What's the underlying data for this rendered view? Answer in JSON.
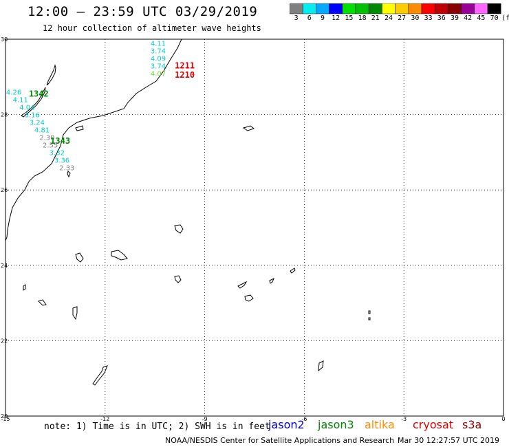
{
  "header": {
    "title": "12:00 — 23:59 UTC 03/29/2019",
    "subtitle": "12 hour collection of altimeter wave heights"
  },
  "legend": {
    "unit": "(ft)",
    "bins": [
      {
        "label": "3",
        "color": "#808080"
      },
      {
        "label": "6",
        "color": "#00f0f0"
      },
      {
        "label": "9",
        "color": "#00a8ff"
      },
      {
        "label": "12",
        "color": "#0000ff"
      },
      {
        "label": "15",
        "color": "#00e000"
      },
      {
        "label": "18",
        "color": "#00c000"
      },
      {
        "label": "21",
        "color": "#008800"
      },
      {
        "label": "24",
        "color": "#ffff00"
      },
      {
        "label": "27",
        "color": "#ffcc00"
      },
      {
        "label": "30",
        "color": "#ff8c00"
      },
      {
        "label": "33",
        "color": "#ff0000"
      },
      {
        "label": "36",
        "color": "#c00000"
      },
      {
        "label": "39",
        "color": "#880000"
      },
      {
        "label": "42",
        "color": "#990099"
      },
      {
        "label": "45",
        "color": "#ff66ff"
      },
      {
        "label": "70",
        "color": "#000000"
      }
    ]
  },
  "map": {
    "lon_range": [
      -15,
      0
    ],
    "lat_range": [
      20,
      30
    ],
    "lon_ticks": [
      {
        "value": -15,
        "label": "-15"
      },
      {
        "value": -12,
        "label": "-12"
      },
      {
        "value": -9,
        "label": "-9"
      },
      {
        "value": -6,
        "label": "-6"
      },
      {
        "value": -3,
        "label": "-3"
      },
      {
        "value": 0,
        "label": "0"
      }
    ],
    "lat_ticks": [
      {
        "value": 30,
        "label": "30"
      },
      {
        "value": 28,
        "label": "28"
      },
      {
        "value": 26,
        "label": "26"
      },
      {
        "value": 24,
        "label": "24"
      },
      {
        "value": 22,
        "label": "22"
      },
      {
        "value": 20,
        "label": "20"
      }
    ],
    "grid": "dotted"
  },
  "observations": [
    {
      "lon": -10.4,
      "lat": 29.9,
      "value": "4.11",
      "color": "#00cccc"
    },
    {
      "lon": -10.4,
      "lat": 29.7,
      "value": "3.74",
      "color": "#00cccc"
    },
    {
      "lon": -10.4,
      "lat": 29.5,
      "value": "4.09",
      "color": "#00cccc"
    },
    {
      "lon": -10.4,
      "lat": 29.3,
      "value": "3.74",
      "color": "#00cccc"
    },
    {
      "lon": -10.4,
      "lat": 29.1,
      "value": "4.07",
      "color": "#66dd33"
    },
    {
      "lon": -14.75,
      "lat": 28.6,
      "value": "4.26",
      "color": "#00cccc"
    },
    {
      "lon": -14.55,
      "lat": 28.4,
      "value": "4.11",
      "color": "#00cccc"
    },
    {
      "lon": -14.35,
      "lat": 28.2,
      "value": "4.04",
      "color": "#00cccc"
    },
    {
      "lon": -14.2,
      "lat": 28.0,
      "value": "3.16",
      "color": "#00cccc"
    },
    {
      "lon": -14.05,
      "lat": 27.8,
      "value": "3.24",
      "color": "#00cccc"
    },
    {
      "lon": -13.9,
      "lat": 27.6,
      "value": "4.81",
      "color": "#00cccc"
    },
    {
      "lon": -13.75,
      "lat": 27.4,
      "value": "2.30",
      "color": "#808080"
    },
    {
      "lon": -13.65,
      "lat": 27.2,
      "value": "2.55",
      "color": "#808080"
    },
    {
      "lon": -13.45,
      "lat": 27.0,
      "value": "3.32",
      "color": "#00cccc"
    },
    {
      "lon": -13.3,
      "lat": 26.8,
      "value": "3.36",
      "color": "#00cccc"
    },
    {
      "lon": -13.15,
      "lat": 26.6,
      "value": "2.33",
      "color": "#808080"
    }
  ],
  "pass_labels": [
    {
      "lon": -9.6,
      "lat": 29.3,
      "text": "1211",
      "color": "#dd0000"
    },
    {
      "lon": -9.6,
      "lat": 29.05,
      "text": "1210",
      "color": "#dd0000"
    },
    {
      "lon": -14.0,
      "lat": 28.55,
      "text": "1342",
      "color": "#008800"
    },
    {
      "lon": -13.35,
      "lat": 27.3,
      "text": "1343",
      "color": "#008800"
    }
  ],
  "footer": {
    "note": "note: 1) Time is in UTC; 2) SWH is in feet",
    "satellites": [
      {
        "name": "jason2",
        "color": "#0000dd"
      },
      {
        "name": "jason3",
        "color": "#008800"
      },
      {
        "name": "altika",
        "color": "#ff8c00"
      },
      {
        "name": "cryosat",
        "color": "#dd0000"
      },
      {
        "name": "s3a",
        "color": "#990000"
      }
    ],
    "credit": "NOAA/NESDIS Center for Satellite Applications and Research",
    "timestamp": "Mar 30 12:27:57 UTC 2019"
  }
}
